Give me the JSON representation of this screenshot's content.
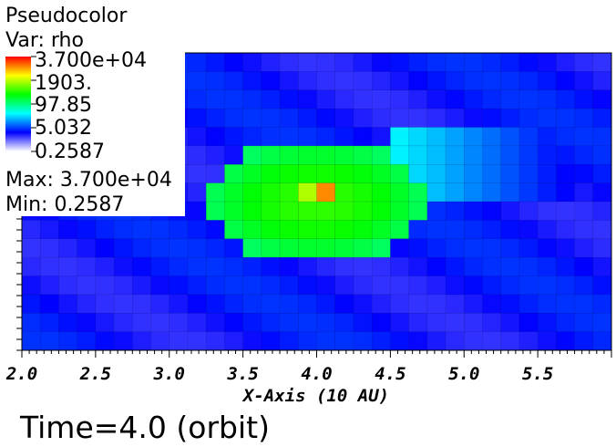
{
  "legend": {
    "plot_type": "Pseudocolor",
    "var_label": "Var: rho",
    "max_label": "Max:  3.700e+04",
    "min_label": "Min:  0.2587",
    "colorbar_ticks": [
      "3.700e+04",
      "1903.",
      "97.85",
      "5.032",
      "0.2587"
    ],
    "colormap": [
      "#ff0000",
      "#ffff00",
      "#00ff00",
      "#00ffff",
      "#0000ff",
      "#ffffff"
    ]
  },
  "time_label": "Time=4.0 (orbit)",
  "chart_data": {
    "type": "heatmap",
    "title": "Pseudocolor",
    "variable": "rho",
    "xlabel": "X-Axis (10 AU)",
    "ylabel": "",
    "xlim": [
      2.0,
      6.0
    ],
    "ylim": [
      -1.0,
      1.0
    ],
    "x_ticks": [
      "2.0",
      "2.5",
      "3.0",
      "3.5",
      "4.0",
      "4.5",
      "5.0",
      "5.5"
    ],
    "color_scale": "log",
    "value_range": [
      0.2587,
      37000
    ],
    "max": 37000,
    "min": 0.2587,
    "grid_resolution": [
      32,
      16
    ],
    "background_level": 0.2,
    "disk": {
      "center": [
        4.0,
        0.0
      ],
      "radius_x": 0.75,
      "radius_y": 0.4
    },
    "core": {
      "center": [
        4.02,
        0.04
      ],
      "peak": 37000
    },
    "wake": {
      "x_range": [
        4.5,
        5.7
      ],
      "y_range": [
        -0.05,
        0.45
      ],
      "level": 0.4
    },
    "time": "4.0"
  }
}
